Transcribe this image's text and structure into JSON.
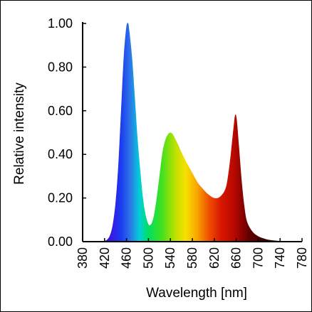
{
  "chart_data": {
    "type": "area",
    "title": "",
    "xlabel": "Wavelength [nm]",
    "ylabel": "Relative intensity",
    "xlim": [
      380,
      780
    ],
    "ylim": [
      0,
      1.0
    ],
    "x_ticks": [
      "380",
      "420",
      "460",
      "500",
      "540",
      "580",
      "620",
      "660",
      "700",
      "740",
      "780"
    ],
    "y_ticks": [
      "0.00",
      "0.20",
      "0.40",
      "0.60",
      "0.80",
      "1.00"
    ],
    "grid": false,
    "legend": "none",
    "fill": "visible-spectrum-gradient",
    "series": [
      {
        "x": [
          380,
          400,
          410,
          420,
          425,
          430,
          435,
          440,
          445,
          450,
          455,
          460,
          463,
          465,
          470,
          475,
          480,
          485,
          490,
          495,
          500,
          503,
          506,
          510,
          515,
          520,
          525,
          530,
          535,
          540,
          545,
          550,
          555,
          560,
          570,
          580,
          590,
          600,
          610,
          620,
          630,
          640,
          645,
          650,
          655,
          658,
          661,
          665,
          670,
          675,
          680,
          690,
          700,
          710,
          720,
          740,
          760,
          780
        ],
        "values": [
          0.0,
          0.0,
          0.0,
          0.003,
          0.01,
          0.03,
          0.08,
          0.18,
          0.35,
          0.6,
          0.85,
          0.99,
          1.0,
          0.97,
          0.85,
          0.67,
          0.48,
          0.33,
          0.2,
          0.12,
          0.08,
          0.076,
          0.085,
          0.12,
          0.2,
          0.3,
          0.4,
          0.46,
          0.49,
          0.5,
          0.49,
          0.465,
          0.44,
          0.41,
          0.36,
          0.315,
          0.27,
          0.24,
          0.215,
          0.2,
          0.205,
          0.24,
          0.3,
          0.4,
          0.52,
          0.58,
          0.56,
          0.44,
          0.28,
          0.16,
          0.09,
          0.045,
          0.025,
          0.015,
          0.008,
          0.003,
          0.0,
          0.0
        ]
      }
    ]
  }
}
